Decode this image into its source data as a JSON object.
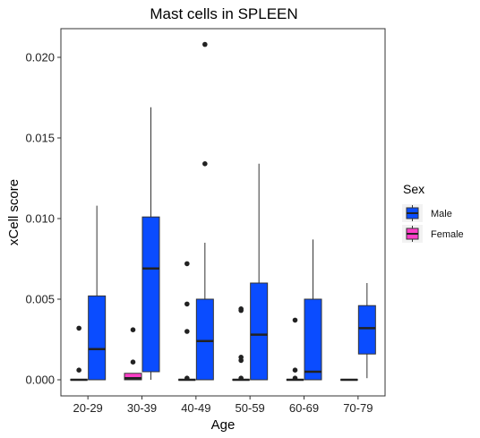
{
  "chart_data": {
    "type": "boxplot",
    "title": "Mast cells in SPLEEN",
    "xlabel": "Age",
    "ylabel": "xCell score",
    "categories": [
      "20-29",
      "30-39",
      "40-49",
      "50-59",
      "60-69",
      "70-79"
    ],
    "ylim": [
      -0.001,
      0.022
    ],
    "yticks": [
      0.0,
      0.005,
      0.01,
      0.015,
      0.02
    ],
    "ytick_labels": [
      "0.000",
      "0.005",
      "0.010",
      "0.015",
      "0.020"
    ],
    "legend": {
      "title": "Sex",
      "position": "right",
      "entries": [
        {
          "label": "Male",
          "color": "#0a4cff"
        },
        {
          "label": "Female",
          "color": "#ff3fc8"
        }
      ]
    },
    "series": [
      {
        "name": "Female",
        "color": "#ff3fc8",
        "boxes": [
          {
            "category": "20-29",
            "min": 0.0,
            "q1": 0.0,
            "median": 0.0,
            "q3": 0.0,
            "max": 0.0,
            "outliers": [
              0.0032,
              0.0006
            ]
          },
          {
            "category": "30-39",
            "min": 0.0,
            "q1": 0.0,
            "median": 0.0001,
            "q3": 0.0004,
            "max": 0.0004,
            "outliers": [
              0.0031,
              0.0011
            ]
          },
          {
            "category": "40-49",
            "min": 0.0,
            "q1": 0.0,
            "median": 0.0,
            "q3": 0.0,
            "max": 0.0,
            "outliers": [
              0.0072,
              0.0047,
              0.003,
              0.0001
            ]
          },
          {
            "category": "50-59",
            "min": 0.0,
            "q1": 0.0,
            "median": 0.0,
            "q3": 0.0,
            "max": 0.0,
            "outliers": [
              0.0044,
              0.0043,
              0.0014,
              0.0012,
              0.0001
            ]
          },
          {
            "category": "60-69",
            "min": 0.0,
            "q1": 0.0,
            "median": 0.0,
            "q3": 0.0,
            "max": 0.0,
            "outliers": [
              0.0037,
              0.0006,
              0.0001
            ]
          },
          {
            "category": "70-79",
            "min": 0.0,
            "q1": 0.0,
            "median": 0.0,
            "q3": 0.0,
            "max": 0.0,
            "outliers": []
          }
        ]
      },
      {
        "name": "Male",
        "color": "#0a4cff",
        "boxes": [
          {
            "category": "20-29",
            "min": 0.0,
            "q1": 0.0,
            "median": 0.0019,
            "q3": 0.0052,
            "max": 0.0108,
            "outliers": []
          },
          {
            "category": "30-39",
            "min": 0.0,
            "q1": 0.0005,
            "median": 0.0069,
            "q3": 0.0101,
            "max": 0.0169,
            "outliers": []
          },
          {
            "category": "40-49",
            "min": 0.0,
            "q1": 0.0,
            "median": 0.0024,
            "q3": 0.005,
            "max": 0.0085,
            "outliers": [
              0.0208,
              0.0134
            ]
          },
          {
            "category": "50-59",
            "min": 0.0,
            "q1": 0.0,
            "median": 0.0028,
            "q3": 0.006,
            "max": 0.0134,
            "outliers": []
          },
          {
            "category": "60-69",
            "min": 0.0,
            "q1": 0.0,
            "median": 0.0005,
            "q3": 0.005,
            "max": 0.0087,
            "outliers": []
          },
          {
            "category": "70-79",
            "min": 0.0001,
            "q1": 0.0016,
            "median": 0.0032,
            "q3": 0.0046,
            "max": 0.006,
            "outliers": []
          }
        ]
      }
    ],
    "grid": false,
    "panel_border": true
  }
}
